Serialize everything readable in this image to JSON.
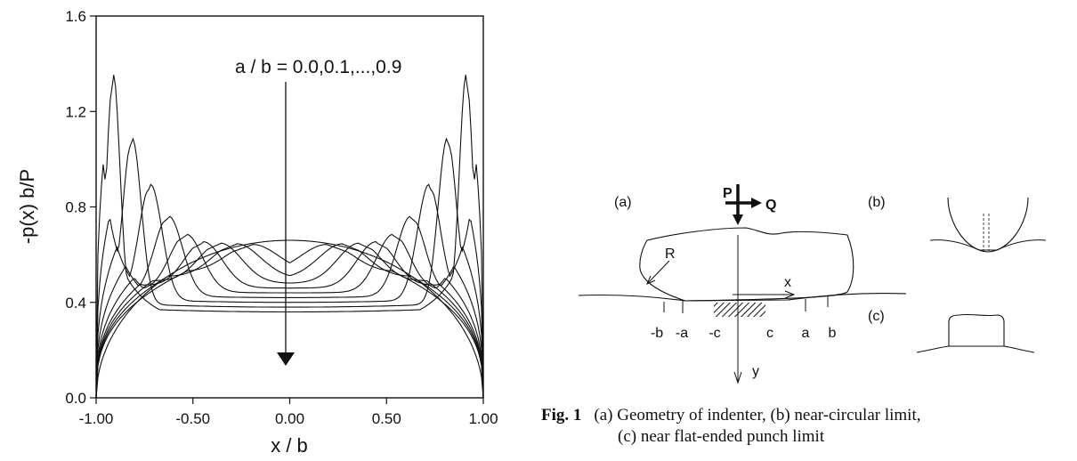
{
  "chart_data": {
    "type": "line",
    "xlabel": "x / b",
    "ylabel": "-p(x) b/P",
    "xlim": [
      -1.0,
      1.0
    ],
    "ylim": [
      0.0,
      1.6
    ],
    "x_ticks": [
      "-1.00",
      "-0.50",
      "0.00",
      "0.50",
      "1.00"
    ],
    "y_ticks": [
      "0.0",
      "0.4",
      "0.8",
      "1.2",
      "1.6"
    ],
    "annotation": "a / b = 0.0,0.1,...,0.9",
    "a_over_b": [
      0.0,
      0.1,
      0.2,
      0.3,
      0.4,
      0.5,
      0.6,
      0.7,
      0.8,
      0.9
    ],
    "approx_peaks": [
      {
        "a_over_b": 0.9,
        "x": 0.93,
        "y": 1.32
      },
      {
        "a_over_b": 0.8,
        "x": 0.86,
        "y": 0.96
      },
      {
        "a_over_b": 0.7,
        "x": 0.78,
        "y": 0.8
      },
      {
        "a_over_b": 0.6,
        "x": 0.7,
        "y": 0.72
      },
      {
        "a_over_b": 0.5,
        "x": 0.62,
        "y": 0.67
      },
      {
        "a_over_b": 0.4,
        "x": 0.55,
        "y": 0.64
      },
      {
        "a_over_b": 0.0,
        "x": 0.0,
        "y": 0.64
      }
    ],
    "grid": false,
    "legend": "none"
  },
  "figure": {
    "panel_a_label": "(a)",
    "panel_b_label": "(b)",
    "panel_c_label": "(c)",
    "load_p": "P",
    "load_q": "Q",
    "radius_label": "R",
    "x_axis_label": "x",
    "y_axis_label": "y",
    "markers": [
      "-b",
      "-a",
      "-c",
      "c",
      "a",
      "b"
    ]
  },
  "caption": {
    "figure_number": "Fig. 1",
    "line1": "(a) Geometry of indenter, (b) near-circular limit,",
    "line2": "(c) near flat-ended punch limit"
  }
}
